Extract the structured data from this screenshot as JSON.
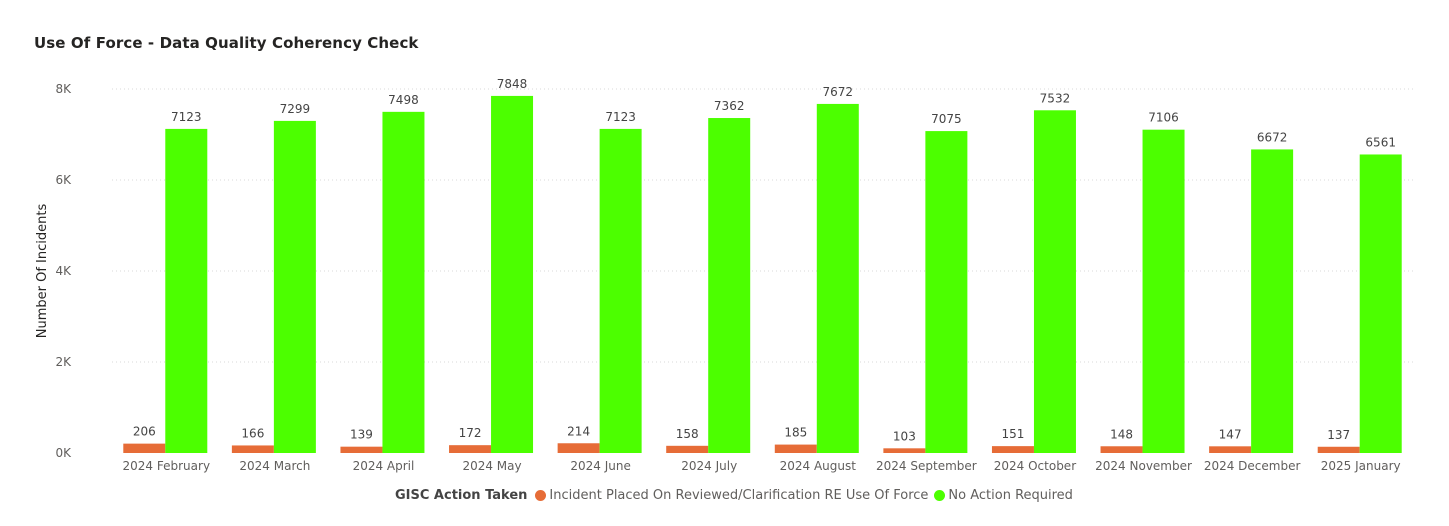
{
  "chart_data": {
    "type": "bar",
    "title": "Use Of Force - Data Quality Coherency Check",
    "xlabel": "",
    "ylabel": "Number Of Incidents",
    "ylim": [
      0,
      8000
    ],
    "yticks": [
      0,
      2000,
      4000,
      6000,
      8000
    ],
    "ytick_labels": [
      "0K",
      "2K",
      "4K",
      "6K",
      "8K"
    ],
    "grid": true,
    "legend_title": "GISC Action Taken",
    "legend_position": "bottom",
    "categories": [
      "2024 February",
      "2024 March",
      "2024 April",
      "2024 May",
      "2024 June",
      "2024 July",
      "2024 August",
      "2024 September",
      "2024 October",
      "2024 November",
      "2024 December",
      "2025 January"
    ],
    "series": [
      {
        "name": "Incident Placed On Reviewed/Clarification RE Use Of Force",
        "color": "#E66C37",
        "values": [
          206,
          166,
          139,
          172,
          214,
          158,
          185,
          103,
          151,
          148,
          147,
          137
        ]
      },
      {
        "name": "No Action Required",
        "color": "#4CFF00",
        "values": [
          7123,
          7299,
          7498,
          7848,
          7123,
          7362,
          7672,
          7075,
          7532,
          7106,
          6672,
          6561
        ]
      }
    ]
  }
}
